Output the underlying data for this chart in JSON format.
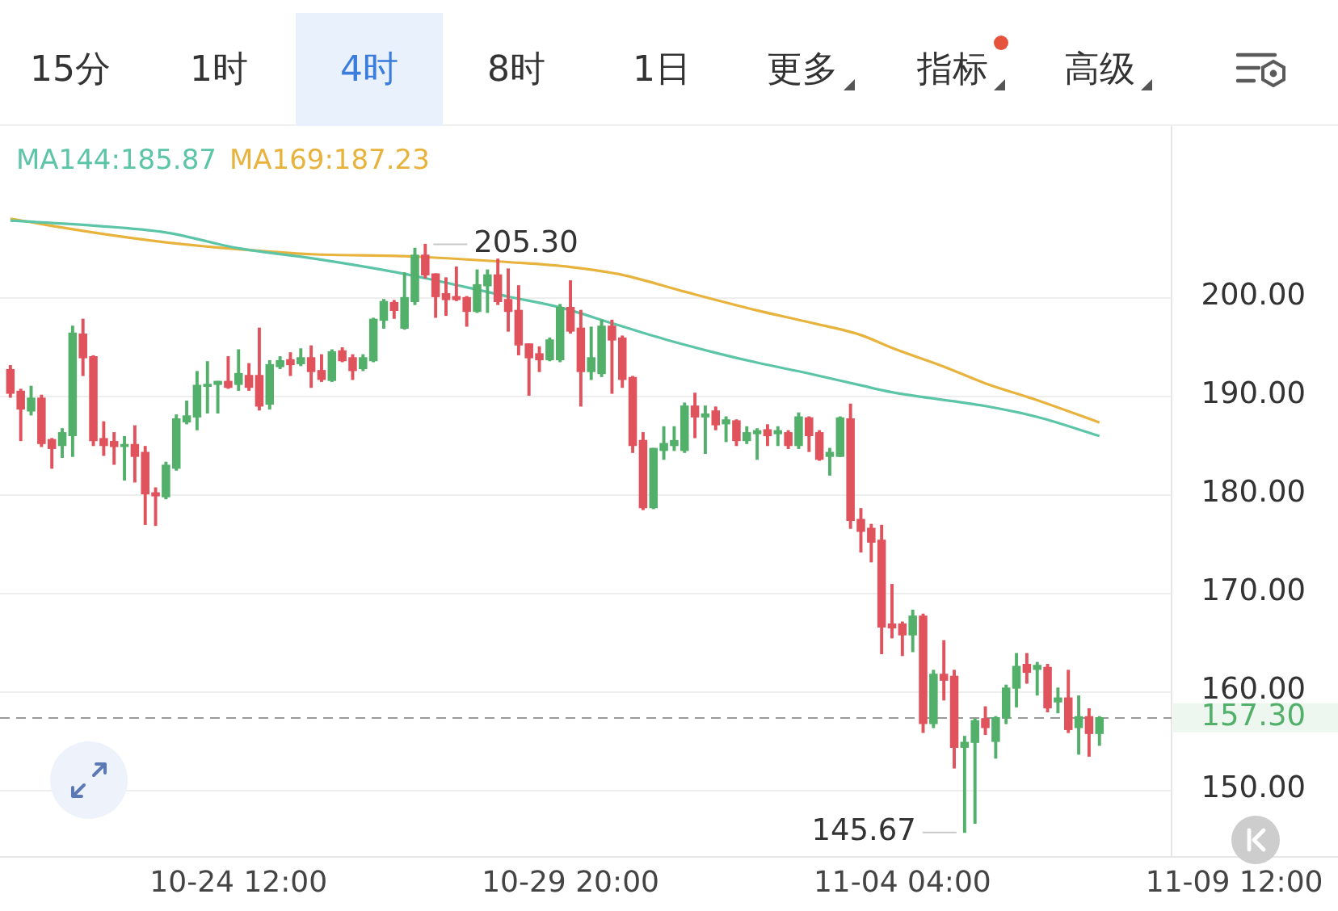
{
  "chart_data": {
    "type": "candlestick",
    "annotations": [
      "15分",
      "1时",
      "4时",
      "8时",
      "1日",
      "更多",
      "指标",
      "高级",
      {
        "text": "205.30",
        "x": "--10-27T12:00",
        "y": 205.3
      },
      {
        "text": "145.67",
        "x": "--11-05T04:00",
        "y": 145.67
      }
    ],
    "x": [
      "--10-20T20:00",
      "--10-21T00:00",
      "--10-21T04:00",
      "--10-21T08:00",
      "--10-21T12:00",
      "--10-21T16:00",
      "--10-21T20:00",
      "--10-22T00:00",
      "--10-22T04:00",
      "--10-22T08:00",
      "--10-22T12:00",
      "--10-22T16:00",
      "--10-22T20:00",
      "--10-23T00:00",
      "--10-23T04:00",
      "--10-23T08:00",
      "--10-23T12:00",
      "--10-23T16:00",
      "--10-23T20:00",
      "--10-24T00:00",
      "--10-24T04:00",
      "--10-24T08:00",
      "--10-24T12:00",
      "--10-24T16:00",
      "--10-24T20:00",
      "--10-25T00:00",
      "--10-25T04:00",
      "--10-25T08:00",
      "--10-25T12:00",
      "--10-25T16:00",
      "--10-25T20:00",
      "--10-26T00:00",
      "--10-26T04:00",
      "--10-26T08:00",
      "--10-26T12:00",
      "--10-26T16:00",
      "--10-26T20:00",
      "--10-27T00:00",
      "--10-27T04:00",
      "--10-27T08:00",
      "--10-27T12:00",
      "--10-27T16:00",
      "--10-27T20:00",
      "--10-28T00:00",
      "--10-28T04:00",
      "--10-28T08:00",
      "--10-28T12:00",
      "--10-28T16:00",
      "--10-28T20:00",
      "--10-29T00:00",
      "--10-29T04:00",
      "--10-29T08:00",
      "--10-29T12:00",
      "--10-29T16:00",
      "--10-29T20:00",
      "--10-30T00:00",
      "--10-30T04:00",
      "--10-30T08:00",
      "--10-30T12:00",
      "--10-30T16:00",
      "--10-30T20:00",
      "--10-31T00:00",
      "--10-31T04:00",
      "--10-31T08:00",
      "--10-31T12:00",
      "--10-31T16:00",
      "--10-31T20:00",
      "--11-01T00:00",
      "--11-01T04:00",
      "--11-01T08:00",
      "--11-01T12:00",
      "--11-01T16:00",
      "--11-01T20:00",
      "--11-02T00:00",
      "--11-02T04:00",
      "--11-02T08:00",
      "--11-02T12:00",
      "--11-02T16:00",
      "--11-02T20:00",
      "--11-03T00:00",
      "--11-03T04:00",
      "--11-03T08:00",
      "--11-03T12:00",
      "--11-03T16:00",
      "--11-03T20:00",
      "--11-04T00:00",
      "--11-04T04:00",
      "--11-04T08:00",
      "--11-04T12:00",
      "--11-04T16:00",
      "--11-04T20:00",
      "--11-05T00:00",
      "--11-05T04:00",
      "--11-05T08:00",
      "--11-05T12:00",
      "--11-05T16:00",
      "--11-05T20:00",
      "--11-06T00:00",
      "--11-06T04:00",
      "--11-06T08:00",
      "--11-06T12:00",
      "--11-06T16:00",
      "--11-06T20:00",
      "--11-07T00:00",
      "--11-07T04:00",
      "--11-07T08:00"
    ],
    "ohlc": [
      [
        192.6,
        193.0,
        189.8,
        190.2
      ],
      [
        190.4,
        190.6,
        185.4,
        188.6
      ],
      [
        188.4,
        190.9,
        188.0,
        189.7
      ],
      [
        189.7,
        190.0,
        184.8,
        185.1
      ],
      [
        185.5,
        185.6,
        182.6,
        184.6
      ],
      [
        184.9,
        186.6,
        183.7,
        186.2
      ],
      [
        185.9,
        197.0,
        183.8,
        196.3
      ],
      [
        196.2,
        197.7,
        192.0,
        193.8
      ],
      [
        193.9,
        194.0,
        184.9,
        185.4
      ],
      [
        185.6,
        187.3,
        183.9,
        184.9
      ],
      [
        185.3,
        186.2,
        183.0,
        184.8
      ],
      [
        184.8,
        185.8,
        181.4,
        185.0
      ],
      [
        185.0,
        186.9,
        181.2,
        183.8
      ],
      [
        184.2,
        184.8,
        176.9,
        180.0
      ],
      [
        180.1,
        180.6,
        176.8,
        179.8
      ],
      [
        179.7,
        183.2,
        179.5,
        182.9
      ],
      [
        182.6,
        188.0,
        182.4,
        187.6
      ],
      [
        187.3,
        189.4,
        187.1,
        187.9
      ],
      [
        187.8,
        192.4,
        186.5,
        191.0
      ],
      [
        190.9,
        193.4,
        188.2,
        191.1
      ],
      [
        191.1,
        191.4,
        188.2,
        191.4
      ],
      [
        191.4,
        193.9,
        190.7,
        190.8
      ],
      [
        191.1,
        194.6,
        190.5,
        192.2
      ],
      [
        192.0,
        193.2,
        190.5,
        190.8
      ],
      [
        192.0,
        196.8,
        188.5,
        188.9
      ],
      [
        189.1,
        193.5,
        188.6,
        193.1
      ],
      [
        192.9,
        193.9,
        192.7,
        193.5
      ],
      [
        193.6,
        194.3,
        192.0,
        193.1
      ],
      [
        193.2,
        194.7,
        193.0,
        193.8
      ],
      [
        193.8,
        195.0,
        190.8,
        192.4
      ],
      [
        192.5,
        194.1,
        191.4,
        191.6
      ],
      [
        191.5,
        194.6,
        191.4,
        194.4
      ],
      [
        194.5,
        194.8,
        193.4,
        193.5
      ],
      [
        193.8,
        194.1,
        191.6,
        192.5
      ],
      [
        192.7,
        194.1,
        192.5,
        193.8
      ],
      [
        193.5,
        197.8,
        193.4,
        197.7
      ],
      [
        197.6,
        199.7,
        196.8,
        199.5
      ],
      [
        199.4,
        199.6,
        197.8,
        198.6
      ],
      [
        196.8,
        202.4,
        196.7,
        199.9
      ],
      [
        199.5,
        204.9,
        199.2,
        204.2
      ],
      [
        204.2,
        205.3,
        201.9,
        202.2
      ],
      [
        202.3,
        202.3,
        197.9,
        200.0
      ],
      [
        200.3,
        201.9,
        198.1,
        199.7
      ],
      [
        200.0,
        203.0,
        199.6,
        199.7
      ],
      [
        199.9,
        200.0,
        197.0,
        198.5
      ],
      [
        198.5,
        202.7,
        198.4,
        201.2
      ],
      [
        201.1,
        202.7,
        198.4,
        202.2
      ],
      [
        202.2,
        203.8,
        199.2,
        199.5
      ],
      [
        199.7,
        202.8,
        196.5,
        198.5
      ],
      [
        198.6,
        201.1,
        194.1,
        195.1
      ],
      [
        195.2,
        195.2,
        190.0,
        193.8
      ],
      [
        194.2,
        194.9,
        192.4,
        193.6
      ],
      [
        193.6,
        195.8,
        193.5,
        195.6
      ],
      [
        193.6,
        199.2,
        193.4,
        198.9
      ],
      [
        198.9,
        201.6,
        196.3,
        196.5
      ],
      [
        196.8,
        198.6,
        188.9,
        192.4
      ],
      [
        192.4,
        196.9,
        191.6,
        193.8
      ],
      [
        192.2,
        197.6,
        191.9,
        197.0
      ],
      [
        197.0,
        197.6,
        190.2,
        195.6
      ],
      [
        195.8,
        196.0,
        190.8,
        191.6
      ],
      [
        191.8,
        191.9,
        184.2,
        184.9
      ],
      [
        185.4,
        186.2,
        178.4,
        178.6
      ],
      [
        178.6,
        184.6,
        178.5,
        184.6
      ],
      [
        184.4,
        186.8,
        183.5,
        185.1
      ],
      [
        184.9,
        186.8,
        184.4,
        185.4
      ],
      [
        184.4,
        189.2,
        184.2,
        188.9
      ],
      [
        188.9,
        190.2,
        185.7,
        187.8
      ],
      [
        187.8,
        188.9,
        184.1,
        188.1
      ],
      [
        188.4,
        188.8,
        186.5,
        187.0
      ],
      [
        187.1,
        187.8,
        185.3,
        187.5
      ],
      [
        187.4,
        187.5,
        184.9,
        185.4
      ],
      [
        185.4,
        186.8,
        185.1,
        186.2
      ],
      [
        186.1,
        186.6,
        183.5,
        186.4
      ],
      [
        186.5,
        187.0,
        184.9,
        185.9
      ],
      [
        186.1,
        186.8,
        184.9,
        186.4
      ],
      [
        186.2,
        186.4,
        184.6,
        184.9
      ],
      [
        184.9,
        188.2,
        184.6,
        187.8
      ],
      [
        187.7,
        187.8,
        184.3,
        185.9
      ],
      [
        186.2,
        186.4,
        183.4,
        183.5
      ],
      [
        183.8,
        184.6,
        181.9,
        184.2
      ],
      [
        183.8,
        187.8,
        183.8,
        187.7
      ],
      [
        187.6,
        189.1,
        176.5,
        177.3
      ],
      [
        177.4,
        178.5,
        174.1,
        176.2
      ],
      [
        176.5,
        176.9,
        173.1,
        175.1
      ],
      [
        175.3,
        176.8,
        163.8,
        166.5
      ],
      [
        166.8,
        170.8,
        165.4,
        166.4
      ],
      [
        166.8,
        167.0,
        163.6,
        165.7
      ],
      [
        165.7,
        168.2,
        164.0,
        167.6
      ],
      [
        167.6,
        167.8,
        155.8,
        156.7
      ],
      [
        156.7,
        162.1,
        156.3,
        161.7
      ],
      [
        161.7,
        165.1,
        159.1,
        161.1
      ],
      [
        161.5,
        162.1,
        152.2,
        154.3
      ],
      [
        154.3,
        155.4,
        145.67,
        154.8
      ],
      [
        154.8,
        157.2,
        146.6,
        157.0
      ],
      [
        157.2,
        158.4,
        155.6,
        156.3
      ],
      [
        154.9,
        157.4,
        153.2,
        157.3
      ],
      [
        157.3,
        160.6,
        156.7,
        160.3
      ],
      [
        160.3,
        163.8,
        158.4,
        162.5
      ],
      [
        162.7,
        163.8,
        160.8,
        161.9
      ],
      [
        162.2,
        162.9,
        159.6,
        162.6
      ],
      [
        162.4,
        162.7,
        157.9,
        158.3
      ],
      [
        158.9,
        160.3,
        157.8,
        159.3
      ],
      [
        159.3,
        162.1,
        155.8,
        156.1
      ],
      [
        156.3,
        159.5,
        153.6,
        157.4
      ],
      [
        157.4,
        158.2,
        153.4,
        155.7
      ],
      [
        155.7,
        157.4,
        154.5,
        157.3
      ]
    ],
    "colors": [
      "#e0525c",
      "#e0525c",
      "#52b06a",
      "#e0525c",
      "#e0525c",
      "#52b06a",
      "#52b06a",
      "#e0525c",
      "#e0525c",
      "#e0525c",
      "#e0525c",
      "#52b06a",
      "#e0525c",
      "#e0525c",
      "#e0525c",
      "#52b06a",
      "#52b06a",
      "#52b06a",
      "#52b06a",
      "#52b06a",
      "#52b06a",
      "#e0525c",
      "#52b06a",
      "#e0525c",
      "#e0525c",
      "#52b06a",
      "#52b06a",
      "#e0525c",
      "#52b06a",
      "#e0525c",
      "#e0525c",
      "#52b06a",
      "#e0525c",
      "#e0525c",
      "#52b06a",
      "#52b06a",
      "#52b06a",
      "#e0525c",
      "#52b06a",
      "#52b06a",
      "#e0525c",
      "#e0525c",
      "#e0525c",
      "#e0525c",
      "#e0525c",
      "#52b06a",
      "#52b06a",
      "#e0525c",
      "#e0525c",
      "#e0525c",
      "#e0525c",
      "#e0525c",
      "#52b06a",
      "#52b06a",
      "#e0525c",
      "#e0525c",
      "#52b06a",
      "#52b06a",
      "#e0525c",
      "#e0525c",
      "#e0525c",
      "#e0525c",
      "#52b06a",
      "#52b06a",
      "#52b06a",
      "#52b06a",
      "#e0525c",
      "#52b06a",
      "#e0525c",
      "#52b06a",
      "#e0525c",
      "#52b06a",
      "#52b06a",
      "#e0525c",
      "#52b06a",
      "#e0525c",
      "#52b06a",
      "#e0525c",
      "#e0525c",
      "#52b06a",
      "#52b06a",
      "#e0525c",
      "#e0525c",
      "#e0525c",
      "#e0525c",
      "#e0525c",
      "#e0525c",
      "#52b06a",
      "#e0525c",
      "#52b06a",
      "#e0525c",
      "#e0525c",
      "#52b06a",
      "#52b06a",
      "#e0525c",
      "#52b06a",
      "#52b06a",
      "#52b06a",
      "#e0525c",
      "#52b06a",
      "#e0525c",
      "#52b06a",
      "#e0525c",
      "#52b06a",
      "#e0525c",
      "#52b06a"
    ],
    "series": [
      {
        "type": "line",
        "name": "MA144:185.87",
        "color": "#5cc5a7",
        "x": [
          "--10-20T20:00",
          "--10-22T04:00",
          "--10-23T08:00",
          "--10-24T12:00",
          "--10-25T16:00",
          "--10-27T04:00",
          "--10-28T20:00",
          "--10-29T16:00",
          "--10-30T12:00",
          "--10-31T08:00",
          "--11-01T04:00",
          "--11-01T20:00",
          "--11-02T16:00",
          "--11-03T12:00",
          "--11-04T00:00",
          "--11-05T12:00",
          "--11-06T08:00",
          "--11-07T08:00"
        ],
        "values": [
          207.7,
          207.2,
          206.5,
          204.9,
          203.9,
          202.3,
          200.0,
          198.9,
          197.3,
          195.7,
          194.3,
          193.3,
          192.2,
          191.0,
          190.3,
          188.9,
          187.8,
          185.87
        ]
      },
      {
        "type": "line",
        "name": "MA169:187.23",
        "color": "#e8b33c",
        "x": [
          "--10-20T20:00",
          "--10-22T04:00",
          "--10-23T08:00",
          "--10-24T12:00",
          "--10-25T16:00",
          "--10-27T04:00",
          "--10-28T20:00",
          "--10-29T20:00",
          "--10-30T16:00",
          "--10-31T16:00",
          "--11-01T20:00",
          "--11-02T16:00",
          "--11-03T12:00",
          "--11-04T00:00",
          "--11-04T20:00",
          "--11-05T12:00",
          "--11-06T08:00",
          "--11-07T08:00"
        ],
        "values": [
          207.9,
          206.5,
          205.5,
          204.8,
          204.3,
          204.1,
          203.5,
          203.0,
          202.2,
          200.5,
          198.6,
          197.4,
          196.1,
          194.8,
          192.9,
          191.2,
          189.5,
          187.23
        ]
      }
    ],
    "xlim": [
      "--10-20T16:00",
      "--11-11T04:00"
    ],
    "xticks": [
      {
        "value": "--10-24T12:00",
        "label": "10-24 12:00"
      },
      {
        "value": "--10-29T20:00",
        "label": "10-29 20:00"
      },
      {
        "value": "--11-04T04:00",
        "label": "11-04 04:00"
      },
      {
        "value": "--11-09T12:00",
        "label": "11-09 12:00"
      }
    ],
    "ylim": [
      143.2,
      217.3
    ],
    "yticks": [
      {
        "value": 150,
        "label": "150.00"
      },
      {
        "value": 160,
        "label": "160.00"
      },
      {
        "value": 170,
        "label": "170.00"
      },
      {
        "value": 180,
        "label": "180.00"
      },
      {
        "value": 190,
        "label": "190.00"
      },
      {
        "value": 200,
        "label": "200.00"
      }
    ],
    "grid": "y",
    "legend": "top left",
    "ref_lines": [
      {
        "axis": "y",
        "value": 157.3,
        "label": "157.30",
        "color": "#9a9a9a",
        "line_style": "dashed"
      }
    ]
  }
}
